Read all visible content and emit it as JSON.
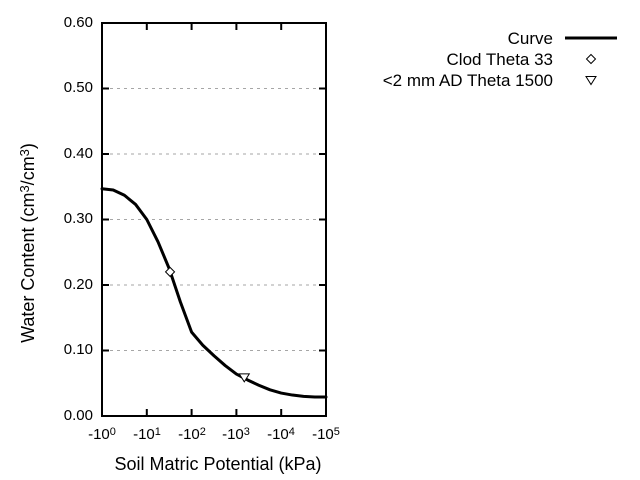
{
  "colors": {
    "ink": "#000000",
    "grid": "#a6a6a6",
    "background": "#ffffff",
    "marker_fill": "#ffffff"
  },
  "axes": {
    "xlabel": "Soil Matric Potential (kPa)",
    "ylabel": {
      "pre": "Water Content (cm",
      "sup1": "3",
      "mid": "/cm",
      "sup2": "3",
      "post": ")"
    }
  },
  "chart_data": {
    "type": "line",
    "title": "",
    "xlabel": "Soil Matric Potential (kPa)",
    "ylabel": "Water Content (cm3/cm3)",
    "x_scale": "negative-log10-kPa",
    "xlim_decades": [
      0,
      5
    ],
    "ylim": [
      0.0,
      0.6
    ],
    "x_tick_prefix": "-10",
    "x_tick_exponents": [
      "0",
      "1",
      "2",
      "3",
      "4",
      "5"
    ],
    "y_ticks": [
      "0.00",
      "0.10",
      "0.20",
      "0.30",
      "0.40",
      "0.50",
      "0.60"
    ],
    "grid": {
      "horizontal_dashed_at": [
        0.1,
        0.2,
        0.3,
        0.4,
        0.5
      ],
      "vertical": false
    },
    "legend_position": "top-right-outside",
    "series": [
      {
        "name": "Curve",
        "kind": "line",
        "points_log10kpa_theta": [
          [
            0.0,
            0.347
          ],
          [
            0.25,
            0.345
          ],
          [
            0.5,
            0.337
          ],
          [
            0.75,
            0.323
          ],
          [
            1.0,
            0.3
          ],
          [
            1.25,
            0.266
          ],
          [
            1.5,
            0.225
          ],
          [
            1.75,
            0.174
          ],
          [
            2.0,
            0.128
          ],
          [
            2.25,
            0.108
          ],
          [
            2.5,
            0.092
          ],
          [
            2.75,
            0.077
          ],
          [
            3.0,
            0.064
          ],
          [
            3.25,
            0.055
          ],
          [
            3.5,
            0.047
          ],
          [
            3.75,
            0.04
          ],
          [
            4.0,
            0.035
          ],
          [
            4.25,
            0.032
          ],
          [
            4.5,
            0.03
          ],
          [
            4.75,
            0.029
          ],
          [
            5.0,
            0.029
          ]
        ]
      },
      {
        "name": "Clod Theta 33",
        "kind": "scatter",
        "marker": "open-diamond",
        "points_log10kpa_theta": [
          [
            1.519,
            0.22
          ]
        ]
      },
      {
        "name": "<2 mm AD Theta 1500",
        "kind": "scatter",
        "marker": "open-triangle-down",
        "points_log10kpa_theta": [
          [
            3.176,
            0.059
          ]
        ]
      }
    ]
  }
}
